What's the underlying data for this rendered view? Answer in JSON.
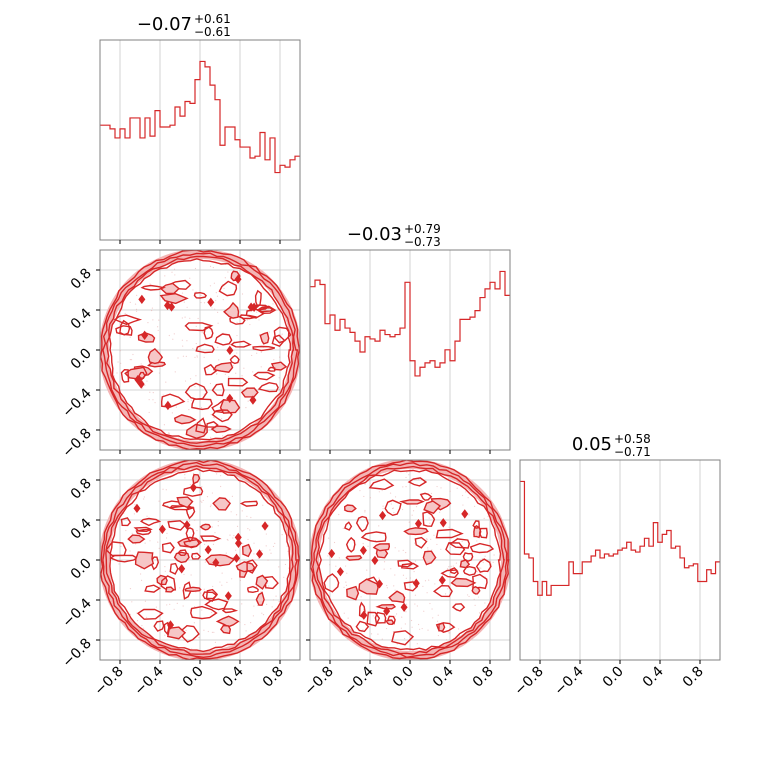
{
  "chart_data": {
    "type": "corner",
    "color": "#d62728",
    "grid": true,
    "axis_range": [
      -1.0,
      1.0
    ],
    "tick_labels": [
      "−0.8",
      "−0.4",
      "0.0",
      "0.4",
      "0.8"
    ],
    "tick_values": [
      -0.8,
      -0.4,
      0.0,
      0.4,
      0.8
    ],
    "titles": [
      {
        "median": "−0.07",
        "plus": "+0.61",
        "minus": "−0.61"
      },
      {
        "median": "−0.03",
        "plus": "+0.79",
        "minus": "−0.73"
      },
      {
        "median": "0.05",
        "plus": "+0.58",
        "minus": "−0.71"
      }
    ],
    "histograms": [
      {
        "parameter": 0,
        "bin_range": [
          -1.0,
          1.0
        ],
        "values": [
          63,
          63,
          61,
          56,
          61,
          56,
          67,
          67,
          56,
          67,
          57,
          71,
          62,
          62,
          63,
          73,
          68,
          76,
          75,
          88,
          98,
          95,
          85,
          77,
          52,
          62,
          62,
          55,
          51,
          51,
          45,
          46,
          59,
          44,
          56,
          37,
          41,
          40,
          44,
          46
        ]
      },
      {
        "parameter": 1,
        "bin_range": [
          -1.0,
          1.0
        ],
        "values": [
          75,
          78,
          76,
          58,
          62,
          55,
          60,
          56,
          54,
          50,
          45,
          52,
          51,
          50,
          55,
          53,
          52,
          53,
          56,
          77,
          41,
          34,
          38,
          40,
          41,
          38,
          40,
          46,
          41,
          50,
          60,
          60,
          61,
          64,
          70,
          74,
          77,
          74,
          82,
          71
        ]
      },
      {
        "parameter": 2,
        "bin_range": [
          -1.0,
          1.0
        ],
        "values": [
          91,
          54,
          52,
          40,
          33,
          40,
          33,
          38,
          38,
          38,
          38,
          50,
          44,
          44,
          50,
          50,
          53,
          56,
          52,
          54,
          53,
          54,
          56,
          57,
          60,
          56,
          55,
          58,
          62,
          58,
          70,
          60,
          64,
          66,
          57,
          58,
          52,
          47,
          48,
          49,
          40,
          40,
          46,
          44,
          50
        ]
      }
    ],
    "scatter_2d": [
      {
        "x_param": 0,
        "y_param": 1,
        "support": "unit disk"
      },
      {
        "x_param": 0,
        "y_param": 2,
        "support": "unit disk"
      },
      {
        "x_param": 1,
        "y_param": 2,
        "support": "unit disk"
      }
    ]
  }
}
